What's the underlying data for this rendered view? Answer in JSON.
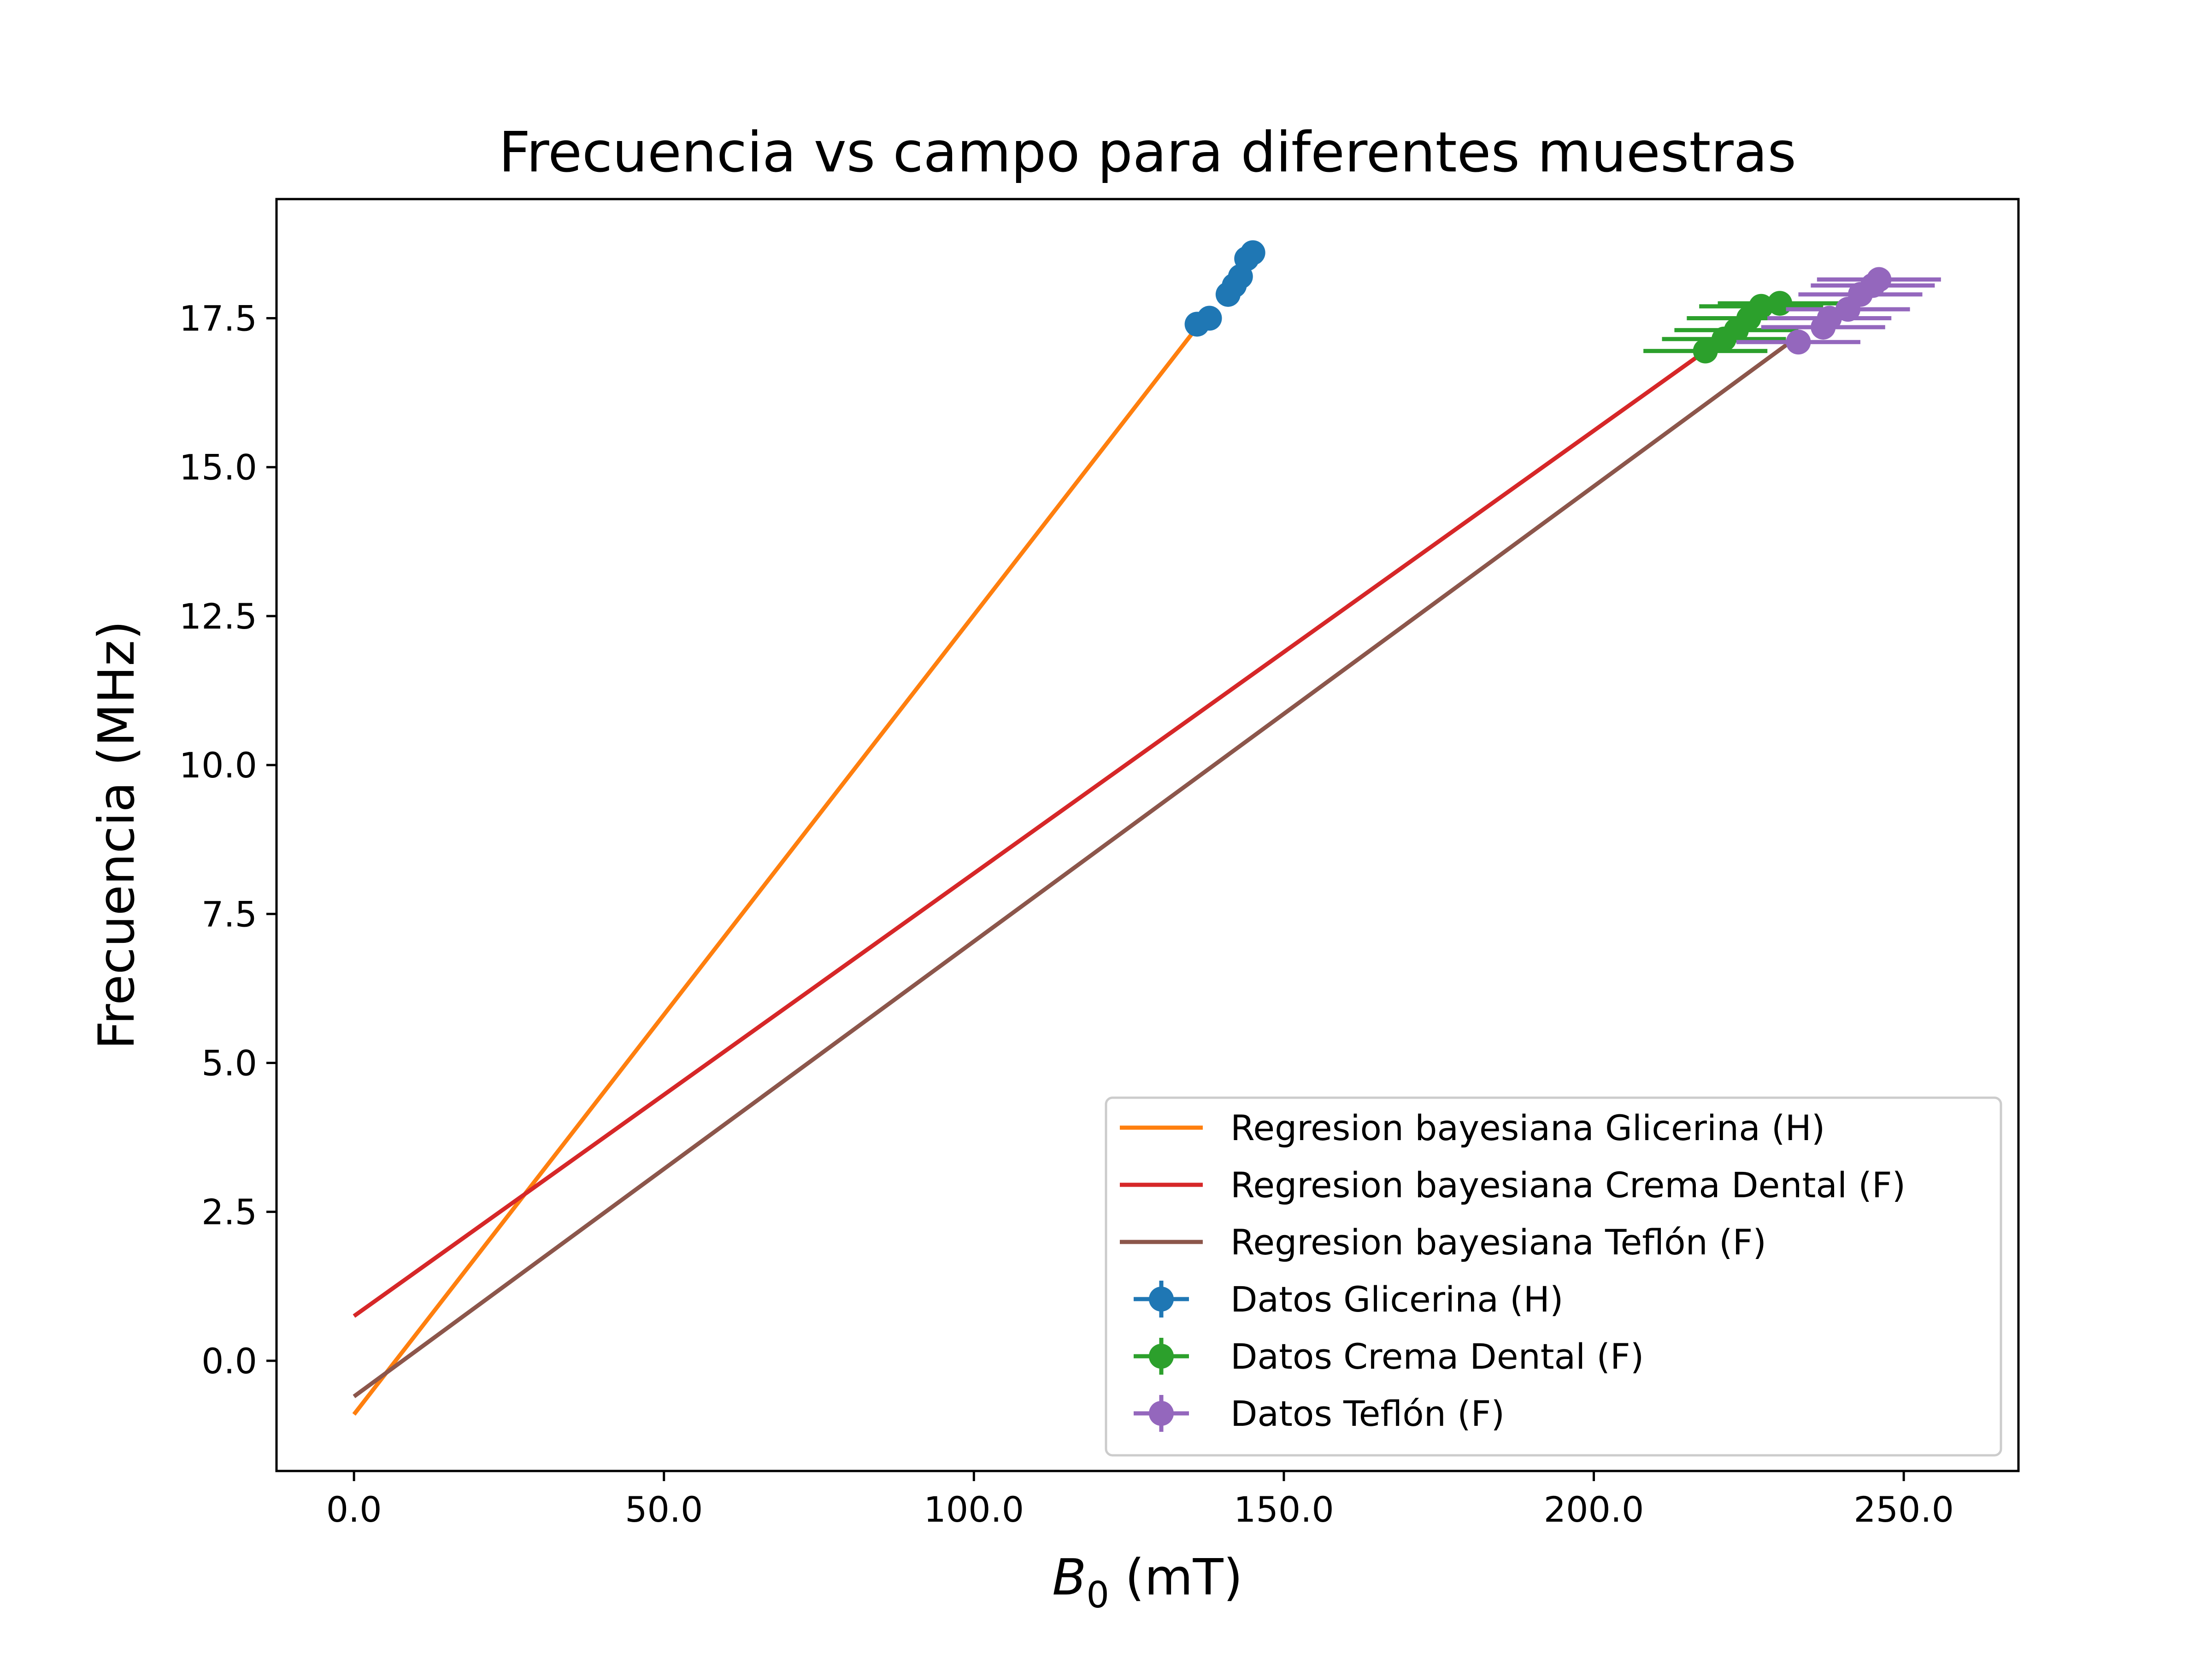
{
  "chart_data": {
    "type": "scatter",
    "title": "Frecuencia vs campo para diferentes muestras",
    "xlabel": {
      "symbol": "B",
      "subscript": "0",
      "unit": " (mT)"
    },
    "ylabel": "Frecuencia (MHz)",
    "xlim": [
      -12.5,
      268.5
    ],
    "ylim": [
      -1.85,
      19.5
    ],
    "x_ticks": [
      0,
      50,
      100,
      150,
      200,
      250
    ],
    "x_tick_labels": [
      "0.0",
      "50.0",
      "100.0",
      "150.0",
      "200.0",
      "250.0"
    ],
    "y_ticks": [
      0,
      2.5,
      5,
      7.5,
      10,
      12.5,
      15,
      17.5
    ],
    "y_tick_labels": [
      "0.0",
      "2.5",
      "5.0",
      "7.5",
      "10.0",
      "12.5",
      "15.0",
      "17.5"
    ],
    "grid": false,
    "legend_position": "lower-right",
    "lines": [
      {
        "name": "Regresion bayesiana Glicerina (H)",
        "color": "#ff7f0e",
        "x": [
          0,
          136
        ],
        "y": [
          -0.9,
          17.35
        ]
      },
      {
        "name": "Regresion bayesiana Crema Dental (F)",
        "color": "#d62728",
        "x": [
          0,
          218
        ],
        "y": [
          0.75,
          16.95
        ]
      },
      {
        "name": "Regresion bayesiana Teflón (F)",
        "color": "#8c564b",
        "x": [
          0,
          233
        ],
        "y": [
          -0.6,
          17.2
        ]
      }
    ],
    "series": [
      {
        "name": "Datos Glicerina (H)",
        "color": "#1f77b4",
        "points": [
          {
            "x": 136.0,
            "y": 17.4,
            "xerr": 0.3,
            "yerr": 0.05
          },
          {
            "x": 138.0,
            "y": 17.5,
            "xerr": 0.3,
            "yerr": 0.05
          },
          {
            "x": 141.0,
            "y": 17.9,
            "xerr": 0.3,
            "yerr": 0.05
          },
          {
            "x": 142.0,
            "y": 18.05,
            "xerr": 0.3,
            "yerr": 0.05
          },
          {
            "x": 143.0,
            "y": 18.2,
            "xerr": 0.3,
            "yerr": 0.05
          },
          {
            "x": 144.0,
            "y": 18.5,
            "xerr": 0.3,
            "yerr": 0.05
          },
          {
            "x": 145.0,
            "y": 18.6,
            "xerr": 0.3,
            "yerr": 0.05
          }
        ]
      },
      {
        "name": "Datos Crema Dental (F)",
        "color": "#2ca02c",
        "points": [
          {
            "x": 218.0,
            "y": 16.95,
            "xerr": 10,
            "yerr": 0.05
          },
          {
            "x": 221.0,
            "y": 17.15,
            "xerr": 10,
            "yerr": 0.05
          },
          {
            "x": 223.0,
            "y": 17.3,
            "xerr": 10,
            "yerr": 0.05
          },
          {
            "x": 225.0,
            "y": 17.5,
            "xerr": 10,
            "yerr": 0.05
          },
          {
            "x": 227.0,
            "y": 17.7,
            "xerr": 10,
            "yerr": 0.05
          },
          {
            "x": 230.0,
            "y": 17.75,
            "xerr": 10,
            "yerr": 0.05
          }
        ]
      },
      {
        "name": "Datos Teflón (F)",
        "color": "#9467bd",
        "points": [
          {
            "x": 233.0,
            "y": 17.1,
            "xerr": 10,
            "yerr": 0.05
          },
          {
            "x": 237.0,
            "y": 17.35,
            "xerr": 10,
            "yerr": 0.05
          },
          {
            "x": 238.0,
            "y": 17.5,
            "xerr": 10,
            "yerr": 0.05
          },
          {
            "x": 241.0,
            "y": 17.65,
            "xerr": 10,
            "yerr": 0.05
          },
          {
            "x": 243.0,
            "y": 17.9,
            "xerr": 10,
            "yerr": 0.05
          },
          {
            "x": 245.0,
            "y": 18.05,
            "xerr": 10,
            "yerr": 0.05
          },
          {
            "x": 246.0,
            "y": 18.15,
            "xerr": 10,
            "yerr": 0.05
          }
        ]
      }
    ]
  }
}
